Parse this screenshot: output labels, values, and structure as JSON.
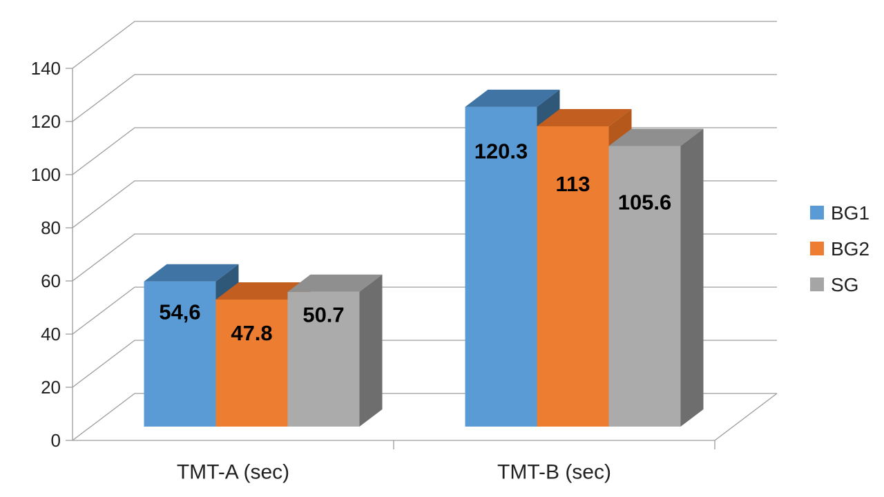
{
  "chart_data": {
    "type": "bar",
    "style": "3d-clustered-column",
    "title": "",
    "xlabel": "",
    "ylabel": "",
    "categories": [
      "TMT-A (sec)",
      "TMT-B (sec)"
    ],
    "series": [
      {
        "name": "BG1",
        "values": [
          54.6,
          120.3
        ],
        "data_labels": [
          "54,6",
          "120.3"
        ],
        "color_front": "#5B9BD5",
        "color_top": "#3F74A4",
        "color_side": "#2F5878"
      },
      {
        "name": "BG2",
        "values": [
          47.8,
          113
        ],
        "data_labels": [
          "47.8",
          "113"
        ],
        "color_front": "#ED7D31",
        "color_top": "#C25E1F",
        "color_side": "#B4581C"
      },
      {
        "name": "SG",
        "values": [
          50.7,
          105.6
        ],
        "data_labels": [
          "50.7",
          "105.6"
        ],
        "color_front": "#ABABAB",
        "color_top": "#8F8F8F",
        "color_side": "#6E6E6E"
      }
    ],
    "y_axis": {
      "min": 0,
      "max": 140,
      "step": 20,
      "tick_labels": [
        "0",
        "20",
        "40",
        "60",
        "80",
        "100",
        "120",
        "140"
      ]
    },
    "legend": {
      "position": "right",
      "entries": [
        {
          "label": "BG1",
          "color": "#5B9BD5"
        },
        {
          "label": "BG2",
          "color": "#ED7D31"
        },
        {
          "label": "SG",
          "color": "#A5A5A5"
        }
      ]
    },
    "gridlines": true,
    "value_labels_shown": true,
    "colors": {
      "grid": "#9C9C9C",
      "axis": "#9C9C9C",
      "tick_text": "#212121",
      "category_text": "#212121",
      "legend_text": "#212121",
      "value_text": "#000000",
      "background": "#FFFFFF"
    }
  }
}
